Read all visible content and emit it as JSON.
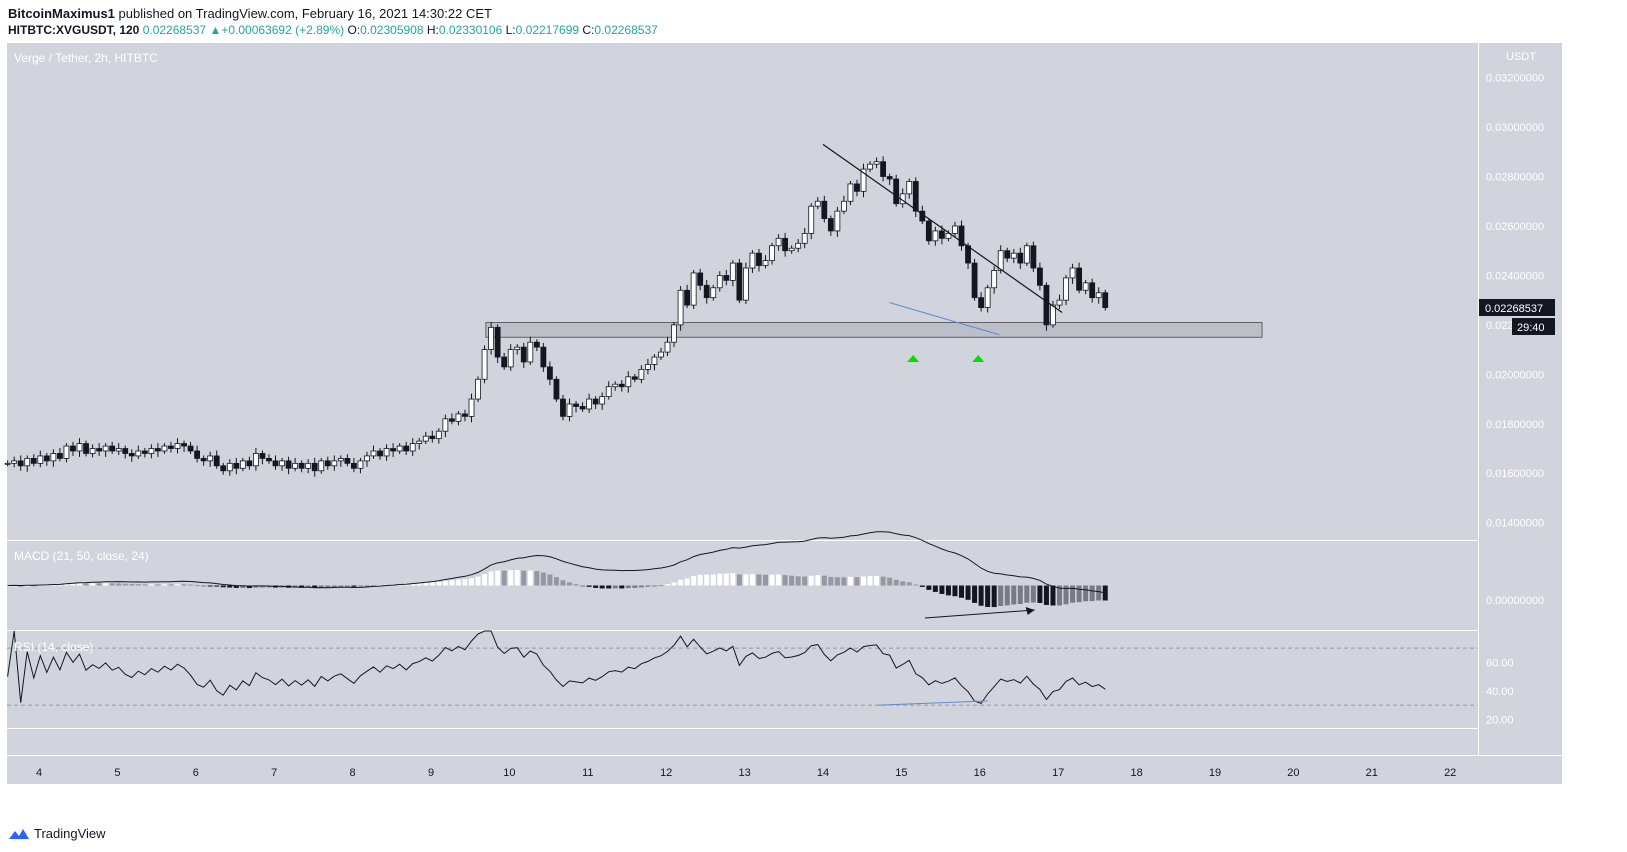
{
  "header": {
    "author": "BitcoinMaximus1",
    "published_text": "published on TradingView.com, February 16, 2021 14:30:22 CET",
    "symbol": "HITBTC:XVGUSDT, 120",
    "last": "0.02268537",
    "change": "+0.00063692 (+2.89%)",
    "o_label": "O:",
    "o": "0.02305908",
    "h_label": "H:",
    "h": "0.02330106",
    "l_label": "L:",
    "l": "0.02217699",
    "c_label": "C:",
    "c": "0.02268537"
  },
  "panes": {
    "main_title": "Verge / Tether, 2h, HITBTC",
    "currency": "USDT",
    "price_tag": "0.02268537",
    "countdown": "29:40",
    "macd_title": "MACD (21, 50, close, 24)",
    "macd_zero": "0.00000000",
    "rsi_title": "RSI (14, close)"
  },
  "footer": {
    "brand": "TradingView"
  },
  "colors": {
    "pane_bg": "#d1d4dc",
    "bull": "#ffffff",
    "bear": "#131722",
    "trendline": "#131722",
    "support_line": "#5b8bd6",
    "arrow": "#00e000",
    "support_zone": "#b9bcc4"
  },
  "chart_data": [
    {
      "type": "candlestick",
      "title": "Verge / Tether, 2h, HITBTC",
      "x_ticks": [
        "4",
        "5",
        "6",
        "7",
        "8",
        "9",
        "10",
        "11",
        "12",
        "13",
        "14",
        "15",
        "16",
        "17",
        "18",
        "19",
        "20",
        "21",
        "22"
      ],
      "y_ticks": [
        "0.01400000",
        "0.01600000",
        "0.01800000",
        "0.02000000",
        "0.02200000",
        "0.02400000",
        "0.02600000",
        "0.02800000",
        "0.03000000",
        "0.03200000"
      ],
      "ylim": [
        0.0133,
        0.0334
      ],
      "support_zone": [
        0.0215,
        0.0221
      ],
      "descending_trendline": [
        {
          "x": 14.0,
          "y": 0.0293
        },
        {
          "x": 17.05,
          "y": 0.0225
        }
      ],
      "support_trendline": [
        {
          "x": 14.85,
          "y": 0.0229
        },
        {
          "x": 16.25,
          "y": 0.0216
        }
      ],
      "up_arrows_x": [
        15.15,
        15.98
      ],
      "close": [
        0.0164,
        0.0165,
        0.0163,
        0.0166,
        0.0164,
        0.0167,
        0.0165,
        0.0168,
        0.0166,
        0.0171,
        0.0169,
        0.0172,
        0.0168,
        0.017,
        0.0169,
        0.0171,
        0.0169,
        0.017,
        0.0168,
        0.0167,
        0.0169,
        0.0168,
        0.017,
        0.0169,
        0.0171,
        0.017,
        0.0172,
        0.0171,
        0.0169,
        0.0166,
        0.0165,
        0.0167,
        0.0163,
        0.0161,
        0.0164,
        0.0162,
        0.0165,
        0.0163,
        0.0168,
        0.0166,
        0.0165,
        0.0163,
        0.0165,
        0.0162,
        0.0164,
        0.0162,
        0.0164,
        0.0161,
        0.0165,
        0.0163,
        0.0165,
        0.0166,
        0.0164,
        0.0162,
        0.0165,
        0.0167,
        0.0169,
        0.0167,
        0.017,
        0.0169,
        0.0171,
        0.0169,
        0.0172,
        0.0173,
        0.0175,
        0.0174,
        0.0177,
        0.0182,
        0.0181,
        0.0184,
        0.0183,
        0.019,
        0.0198,
        0.021,
        0.0219,
        0.0207,
        0.0203,
        0.021,
        0.0211,
        0.0205,
        0.0213,
        0.0211,
        0.0203,
        0.0198,
        0.019,
        0.0183,
        0.0188,
        0.0187,
        0.0186,
        0.019,
        0.0188,
        0.0191,
        0.0195,
        0.0196,
        0.0195,
        0.0199,
        0.0198,
        0.0202,
        0.0204,
        0.0207,
        0.0209,
        0.0213,
        0.022,
        0.0234,
        0.0228,
        0.0241,
        0.0236,
        0.0231,
        0.0235,
        0.024,
        0.0238,
        0.0245,
        0.023,
        0.0243,
        0.0249,
        0.0244,
        0.0246,
        0.0252,
        0.0255,
        0.025,
        0.0251,
        0.0253,
        0.0257,
        0.0268,
        0.027,
        0.0263,
        0.0258,
        0.0266,
        0.027,
        0.0277,
        0.0274,
        0.0283,
        0.0285,
        0.0286,
        0.028,
        0.0279,
        0.0269,
        0.0273,
        0.0278,
        0.0266,
        0.0262,
        0.0254,
        0.0258,
        0.0255,
        0.0257,
        0.026,
        0.0252,
        0.0245,
        0.0231,
        0.0227,
        0.0235,
        0.0242,
        0.025,
        0.0247,
        0.0249,
        0.0245,
        0.0252,
        0.0243,
        0.0236,
        0.022,
        0.0228,
        0.023,
        0.0239,
        0.0243,
        0.0234,
        0.0237,
        0.0231,
        0.0233,
        0.0227
      ],
      "macd_ylim": [
        -0.0019,
        0.0019
      ],
      "rsi_ylim": [
        14,
        82
      ],
      "rsi_ticks": [
        "20.00",
        "40.00",
        "60.00"
      ],
      "rsi_bands": [
        30,
        70
      ]
    }
  ]
}
